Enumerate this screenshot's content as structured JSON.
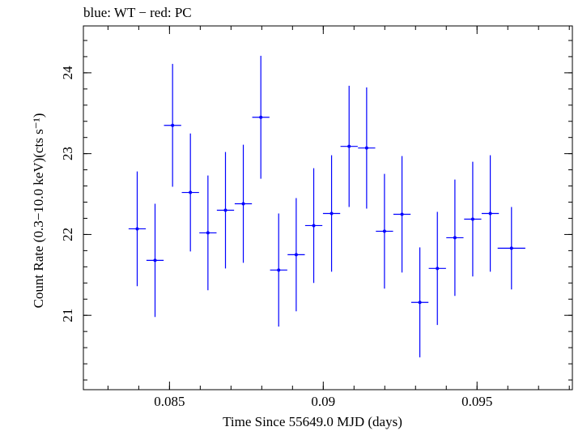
{
  "chart_data": {
    "type": "scatter",
    "title": "blue: WT − red: PC",
    "xlabel": "Time Since 55649.0 MJD (days)",
    "ylabel": "Count Rate (0.3−10.0 keV)(cts s⁻¹)",
    "xlim": [
      0.0822,
      0.0981
    ],
    "ylim": [
      20.08,
      24.58
    ],
    "x_ticks": [
      0.085,
      0.09,
      0.095
    ],
    "x_tick_labels": [
      "0.085",
      "0.09",
      "0.095"
    ],
    "y_ticks": [
      21,
      22,
      23,
      24
    ],
    "y_tick_labels": [
      "21",
      "22",
      "23",
      "24"
    ],
    "grid": false,
    "color": "#0000ff",
    "series": [
      {
        "points": [
          {
            "x": 0.08395,
            "xerr": 0.00028,
            "y": 22.07,
            "yerr": 0.71
          },
          {
            "x": 0.08453,
            "xerr": 0.00028,
            "y": 21.68,
            "yerr": 0.7
          },
          {
            "x": 0.0851,
            "xerr": 0.00028,
            "y": 23.35,
            "yerr": 0.76
          },
          {
            "x": 0.08568,
            "xerr": 0.00028,
            "y": 22.52,
            "yerr": 0.73
          },
          {
            "x": 0.08625,
            "xerr": 0.00028,
            "y": 22.02,
            "yerr": 0.71
          },
          {
            "x": 0.08682,
            "xerr": 0.00028,
            "y": 22.3,
            "yerr": 0.72
          },
          {
            "x": 0.0874,
            "xerr": 0.00028,
            "y": 22.38,
            "yerr": 0.73
          },
          {
            "x": 0.08797,
            "xerr": 0.00028,
            "y": 23.45,
            "yerr": 0.76
          },
          {
            "x": 0.08855,
            "xerr": 0.00028,
            "y": 21.56,
            "yerr": 0.7
          },
          {
            "x": 0.08912,
            "xerr": 0.00028,
            "y": 21.75,
            "yerr": 0.7
          },
          {
            "x": 0.08969,
            "xerr": 0.00028,
            "y": 22.11,
            "yerr": 0.71
          },
          {
            "x": 0.09027,
            "xerr": 0.00028,
            "y": 22.26,
            "yerr": 0.72
          },
          {
            "x": 0.09084,
            "xerr": 0.00028,
            "y": 23.09,
            "yerr": 0.75
          },
          {
            "x": 0.09141,
            "xerr": 0.00028,
            "y": 23.07,
            "yerr": 0.75
          },
          {
            "x": 0.09199,
            "xerr": 0.00028,
            "y": 22.04,
            "yerr": 0.71
          },
          {
            "x": 0.09256,
            "xerr": 0.00028,
            "y": 22.25,
            "yerr": 0.72
          },
          {
            "x": 0.09314,
            "xerr": 0.00028,
            "y": 21.16,
            "yerr": 0.68
          },
          {
            "x": 0.09371,
            "xerr": 0.00028,
            "y": 21.58,
            "yerr": 0.7
          },
          {
            "x": 0.09428,
            "xerr": 0.00028,
            "y": 21.96,
            "yerr": 0.72
          },
          {
            "x": 0.09486,
            "xerr": 0.00028,
            "y": 22.19,
            "yerr": 0.71
          },
          {
            "x": 0.09543,
            "xerr": 0.00028,
            "y": 22.26,
            "yerr": 0.72
          },
          {
            "x": 0.09612,
            "xerr": 0.00045,
            "y": 21.83,
            "yerr": 0.51
          }
        ]
      }
    ]
  }
}
